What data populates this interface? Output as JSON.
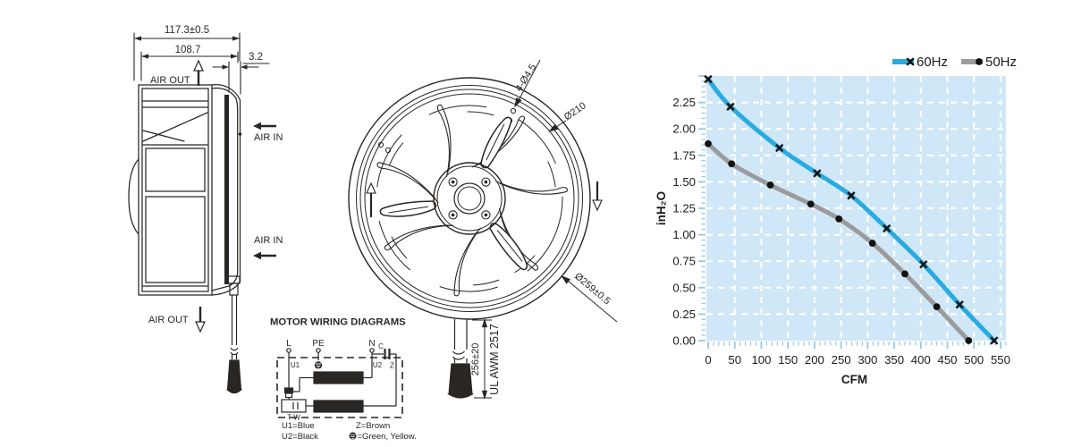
{
  "colors": {
    "ink": "#2a2623",
    "chart_text": "#1c1c1c"
  },
  "side_view": {
    "dim_width_outer": "117.3±0.5",
    "dim_width_inner": "108.7",
    "dim_flange": "3.2",
    "label_air_out_top": "AIR OUT",
    "label_air_in_upper": "AIR IN",
    "label_air_in_lower": "AIR IN",
    "label_air_out_bottom": "AIR OUT"
  },
  "front_view": {
    "label_mount_holes": "4-Ø4.5",
    "label_inner_diameter": "Ø210",
    "label_outer_diameter": "Ø259±0.5",
    "label_cable_length": "256±20",
    "label_cable_spec": "UL AWM 2517"
  },
  "wiring_diagram": {
    "title": "MOTOR WIRING DIAGRAMS",
    "terminal_l": "L",
    "terminal_pe": "PE",
    "terminal_n": "N",
    "capacitor": "C",
    "winding_u1": "U1",
    "winding_u2": "U2",
    "winding_z": "Z",
    "thermal": "T W",
    "legend_u1": "U1=Blue",
    "legend_u2": "U2=Black",
    "legend_z": "Z=Brown",
    "legend_earth": "=Green, Yellow."
  },
  "chart_data": {
    "type": "line",
    "xlabel": "CFM",
    "ylabel": "inH₂O",
    "x_ticks": [
      0,
      50,
      100,
      150,
      200,
      250,
      300,
      350,
      400,
      450,
      500,
      550
    ],
    "y_ticks": [
      0,
      0.25,
      0.5,
      0.75,
      1,
      1.25,
      1.5,
      1.75,
      2,
      2.25
    ],
    "xlim": [
      0,
      560
    ],
    "ylim": [
      0,
      2.5
    ],
    "grid": true,
    "legend_position": "top-right",
    "panel_color": "#cfe7f7",
    "grid_color": "#ffffff",
    "tick_color": "#93c9e8",
    "marker_color": "#111111",
    "series": [
      {
        "name": "60Hz",
        "color": "#29abe2",
        "marker": "x",
        "points": [
          [
            0,
            2.47
          ],
          [
            42,
            2.21
          ],
          [
            134,
            1.82
          ],
          [
            205,
            1.58
          ],
          [
            269,
            1.37
          ],
          [
            336,
            1.06
          ],
          [
            405,
            0.72
          ],
          [
            473,
            0.34
          ],
          [
            538,
            0
          ]
        ]
      },
      {
        "name": "50Hz",
        "color": "#9b9b9b",
        "marker": "dot",
        "points": [
          [
            0,
            1.86
          ],
          [
            44,
            1.67
          ],
          [
            117,
            1.47
          ],
          [
            193,
            1.29
          ],
          [
            246,
            1.15
          ],
          [
            309,
            0.92
          ],
          [
            370,
            0.63
          ],
          [
            430,
            0.32
          ],
          [
            490,
            0
          ]
        ]
      }
    ]
  }
}
